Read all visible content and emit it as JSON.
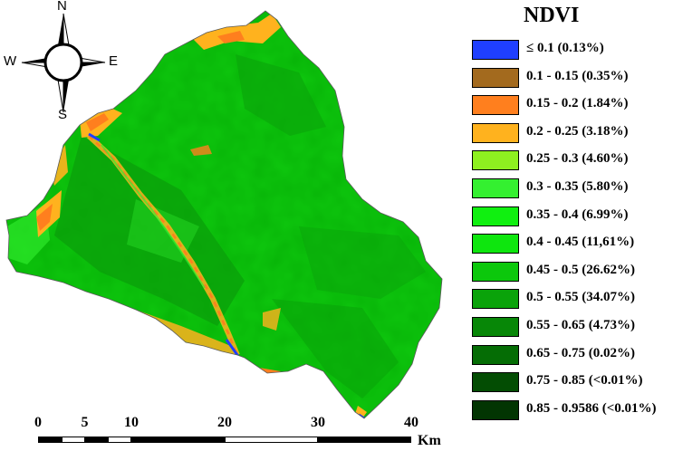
{
  "compass": {
    "north": "N",
    "south": "S",
    "east": "E",
    "west": "W"
  },
  "legend": {
    "title": "NDVI",
    "items": [
      {
        "label": "≤ 0.1 (0.13%)",
        "color": "#1f3fff"
      },
      {
        "label": "0.1 - 0.15 (0.35%)",
        "color": "#a36a1e"
      },
      {
        "label": "0.15 - 0.2 (1.84%)",
        "color": "#ff7f1e"
      },
      {
        "label": "0.2 - 0.25 (3.18%)",
        "color": "#ffb21e"
      },
      {
        "label": "0.25 - 0.3 (4.60%)",
        "color": "#8ef020"
      },
      {
        "label": "0.3 - 0.35 (5.80%)",
        "color": "#34f030"
      },
      {
        "label": "0.35 - 0.4 (6.99%)",
        "color": "#10f010"
      },
      {
        "label": "0.4 - 0.45 (11,61%)",
        "color": "#0ee60e"
      },
      {
        "label": "0.45 - 0.5 (26.62%)",
        "color": "#0cc80c"
      },
      {
        "label": "0.5 - 0.55 (34.07%)",
        "color": "#0aa30a"
      },
      {
        "label": "0.55 - 0.65 (4.73%)",
        "color": "#078707"
      },
      {
        "label": "0.65 - 0.75 (0.02%)",
        "color": "#056d05"
      },
      {
        "label": "0.75 - 0.85 (<0.01%)",
        "color": "#034d03"
      },
      {
        "label": "0.85 - 0.9586 (<0.01%)",
        "color": "#023502"
      }
    ]
  },
  "scalebar": {
    "ticks": [
      "0",
      "5",
      "10",
      "20",
      "30",
      "40"
    ],
    "unit": "Km"
  }
}
